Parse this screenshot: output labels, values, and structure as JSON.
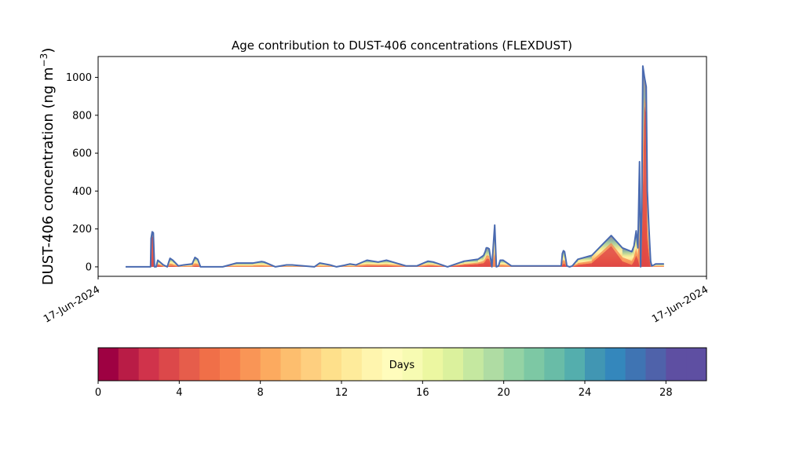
{
  "chart_data": {
    "type": "area",
    "title": "Age contribution to DUST-406 concentrations (FLEXDUST)",
    "ylabel_main": "DUST-406 concentration (ng m",
    "ylabel_exp": "−3",
    "ylabel_close": ")",
    "ylim": [
      -50,
      1110
    ],
    "y_ticks": [
      0,
      200,
      400,
      600,
      800,
      1000
    ],
    "x_tick_labels": [
      "17-Jun-2024",
      "17-Jun-2024"
    ],
    "grid": false,
    "colorbar": {
      "label": "Days",
      "min": 0,
      "max": 30,
      "ticks": [
        0,
        4,
        8,
        12,
        16,
        20,
        24,
        28
      ],
      "colors": [
        "#9e0142",
        "#b91c46",
        "#d0334b",
        "#dc484a",
        "#e65d4b",
        "#f06f48",
        "#f67f4d",
        "#f99556",
        "#fcaa5f",
        "#fdbe6e",
        "#fecf7f",
        "#fee08b",
        "#feeb9b",
        "#fff5ae",
        "#fffcbc",
        "#f7fbb2",
        "#ecf7a1",
        "#dbf19d",
        "#c5e8a0",
        "#afdca3",
        "#94d3a4",
        "#7dc8a4",
        "#69bca7",
        "#54aead",
        "#4196b3",
        "#3487bc",
        "#3f74b3",
        "#4f62aa",
        "#5e4fa2",
        "#5e4fa2"
      ]
    },
    "series": [
      {
        "x": [
          0.0,
          0.045,
          0.046,
          0.048,
          0.05,
          0.052,
          0.055,
          0.058,
          0.068,
          0.075,
          0.08,
          0.085,
          0.095,
          0.105,
          0.12,
          0.125,
          0.13,
          0.135,
          0.16,
          0.175,
          0.2,
          0.23,
          0.245,
          0.25,
          0.27,
          0.29,
          0.3,
          0.34,
          0.35,
          0.368,
          0.38,
          0.394,
          0.404,
          0.415,
          0.435,
          0.455,
          0.47,
          0.505,
          0.525,
          0.545,
          0.555,
          0.58,
          0.61,
          0.635,
          0.645,
          0.648,
          0.65,
          0.652,
          0.655,
          0.66,
          0.665,
          0.668,
          0.672,
          0.675,
          0.68,
          0.695,
          0.71,
          0.76,
          0.785,
          0.787,
          0.789,
          0.791,
          0.795,
          0.8,
          0.805,
          0.815,
          0.84,
          0.875,
          0.895,
          0.912,
          0.916,
          0.92,
          0.923,
          0.926,
          0.928,
          0.93,
          0.932,
          0.935,
          0.938,
          0.94,
          0.943,
          0.946,
          0.948,
          0.952,
          0.955,
          0.97
        ],
        "total": [
          0,
          0,
          150,
          185,
          180,
          0,
          0,
          35,
          10,
          0,
          45,
          35,
          5,
          10,
          15,
          50,
          40,
          0,
          0,
          0,
          20,
          20,
          28,
          25,
          0,
          10,
          10,
          0,
          20,
          10,
          0,
          8,
          15,
          10,
          35,
          25,
          35,
          5,
          5,
          30,
          25,
          0,
          30,
          40,
          60,
          80,
          100,
          100,
          95,
          0,
          220,
          0,
          5,
          35,
          35,
          5,
          5,
          5,
          5,
          70,
          85,
          80,
          5,
          0,
          5,
          40,
          60,
          165,
          100,
          80,
          110,
          190,
          100,
          555,
          0,
          300,
          1060,
          1000,
          950,
          400,
          200,
          30,
          5,
          10,
          15,
          15
        ],
        "young": [
          0,
          0,
          140,
          160,
          150,
          0,
          0,
          10,
          0,
          0,
          5,
          5,
          0,
          0,
          0,
          5,
          5,
          0,
          0,
          0,
          0,
          0,
          0,
          0,
          0,
          0,
          0,
          0,
          0,
          0,
          0,
          0,
          0,
          0,
          5,
          5,
          5,
          0,
          0,
          5,
          5,
          0,
          10,
          15,
          20,
          30,
          40,
          45,
          40,
          0,
          0,
          0,
          0,
          0,
          0,
          0,
          0,
          0,
          0,
          10,
          15,
          15,
          0,
          0,
          0,
          10,
          20,
          110,
          30,
          10,
          30,
          60,
          40,
          0,
          0,
          50,
          400,
          850,
          800,
          150,
          60,
          0,
          0,
          0,
          0,
          0
        ]
      }
    ]
  }
}
